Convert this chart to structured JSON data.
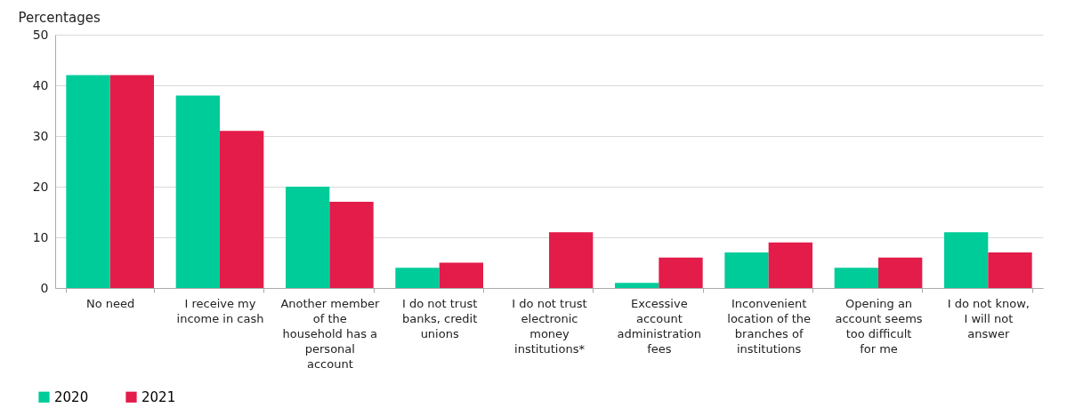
{
  "chart_data": {
    "type": "bar",
    "ylabel": "Percentages",
    "categories": [
      "No need",
      "I receive my income in cash",
      "Another member of the household has a personal account",
      "I do not trust banks, credit unions",
      "I do not trust electronic money institutions*",
      "Excessive account administration fees",
      "Inconvenient location of the branches of institutions",
      "Opening an account seems too difficult for me",
      "I do not know, I will not answer"
    ],
    "series": [
      {
        "name": "2020",
        "color": "#00cc99",
        "values": [
          42,
          38,
          20,
          4,
          null,
          1,
          7,
          4,
          11
        ]
      },
      {
        "name": "2021",
        "color": "#e31c4a",
        "values": [
          42,
          31,
          17,
          5,
          11,
          6,
          9,
          6,
          7
        ]
      }
    ],
    "ylim": [
      0,
      50
    ],
    "yticks": [
      0,
      10,
      20,
      30,
      40,
      50
    ],
    "grid": "y",
    "legend": "bottom left"
  }
}
